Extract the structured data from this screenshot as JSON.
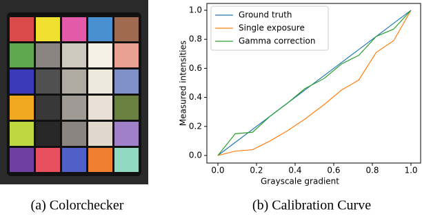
{
  "captions": [
    "(a) Colorchecker",
    "(b) Calibration Curve"
  ],
  "chart_data": {
    "type": "line",
    "xlabel": "Grayscale gradient",
    "ylabel": "Measured intensities",
    "x": [
      0,
      0.09,
      0.18,
      0.27,
      0.36,
      0.45,
      0.55,
      0.64,
      0.73,
      0.82,
      0.91,
      1.0
    ],
    "series": [
      {
        "name": "Ground truth",
        "color": "#1f77b4",
        "values": [
          0,
          0.09,
          0.18,
          0.27,
          0.36,
          0.45,
          0.55,
          0.64,
          0.73,
          0.82,
          0.91,
          1.0
        ]
      },
      {
        "name": "Single exposure",
        "color": "#ff7f0e",
        "values": [
          0,
          0.03,
          0.04,
          0.1,
          0.17,
          0.25,
          0.35,
          0.45,
          0.52,
          0.71,
          0.79,
          1.0
        ]
      },
      {
        "name": "Gamma correction",
        "color": "#2ca02c",
        "values": [
          0,
          0.15,
          0.16,
          0.27,
          0.36,
          0.46,
          0.53,
          0.63,
          0.69,
          0.82,
          0.87,
          1.0
        ]
      }
    ],
    "xlim": [
      -0.057,
      1.05
    ],
    "ylim": [
      -0.052,
      1.047
    ],
    "xticks": [
      {
        "value": 0,
        "label": "0.0"
      },
      0.2,
      0.4,
      0.6,
      0.8,
      {
        "value": 1,
        "label": "1.0"
      }
    ],
    "yticks": [
      {
        "value": 0,
        "label": "0.0"
      },
      0.2,
      0.4,
      0.6,
      0.8,
      {
        "value": 1,
        "label": "1.0"
      }
    ],
    "legend": "upper left"
  }
}
